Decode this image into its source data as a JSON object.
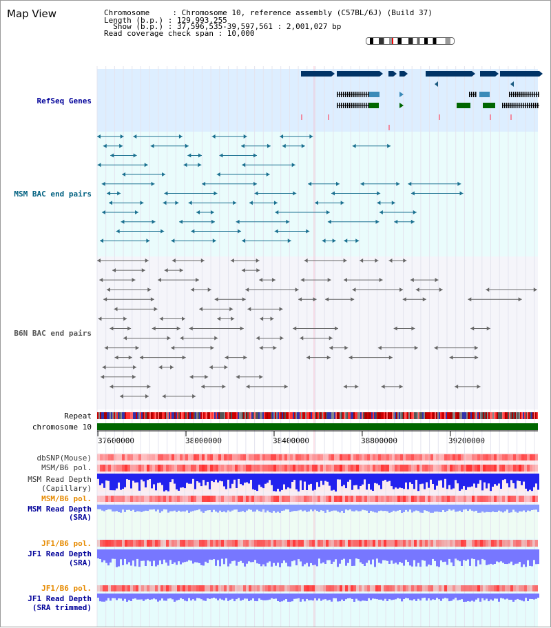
{
  "page": {
    "title": "Map View"
  },
  "info": {
    "chromosome": "Chromosome     : Chromosome 10, reference assembly (C57BL/6J) (Build 37)",
    "length": "Length (b.p.) : 129,993,255",
    "show": "  Show (b.p.) : 37,596,535-39,597,561 : 2,001,027 bp",
    "coverage": "Read coverage check span : 10,000"
  },
  "tracks": {
    "refseq": {
      "label": "RefSeq Genes",
      "color": "#000099"
    },
    "msm_bac": {
      "label": "MSM BAC end pairs",
      "color": "#006080"
    },
    "b6n_bac": {
      "label": "B6N BAC end pairs",
      "color": "#555555"
    },
    "repeat": {
      "label": "Repeat"
    },
    "chromosome": {
      "label": "chromosome 10"
    },
    "dbsnp": {
      "label": "dbSNP(Mouse)"
    },
    "msm_pol1": {
      "label": "MSM/B6 pol."
    },
    "msm_depth_cap": {
      "label1": "MSM Read Depth",
      "label2": "(Capillary)"
    },
    "msm_pol2": {
      "label": "MSM/B6 pol.",
      "color": "#e68a00"
    },
    "msm_depth_sra": {
      "label1": "MSM Read Depth",
      "label2": "(SRA)",
      "color": "#000099"
    },
    "jf1_pol1": {
      "label": "JF1/B6 pol.",
      "color": "#e68a00"
    },
    "jf1_depth_sra": {
      "label1": "JF1 Read Depth",
      "label2": "(SRA)",
      "color": "#000099"
    },
    "jf1_pol2": {
      "label": "JF1/B6 pol.",
      "color": "#e68a00"
    },
    "jf1_depth_trim": {
      "label1": "JF1 Read Depth",
      "label2": "(SRA trimmed)",
      "color": "#000099"
    }
  },
  "axis": {
    "ticks": [
      "37600000",
      "38000000",
      "38400000",
      "38800000",
      "39200000"
    ],
    "tick_values": [
      37600000,
      38000000,
      38400000,
      38800000,
      39200000
    ],
    "range": [
      37596535,
      39597561
    ]
  },
  "colors": {
    "gene": "#003366",
    "refseq_bg": "#ddeeff",
    "msm_bg": "#eafcfc",
    "b6n_bg": "#f5f5fa",
    "chrom": "#006600"
  }
}
